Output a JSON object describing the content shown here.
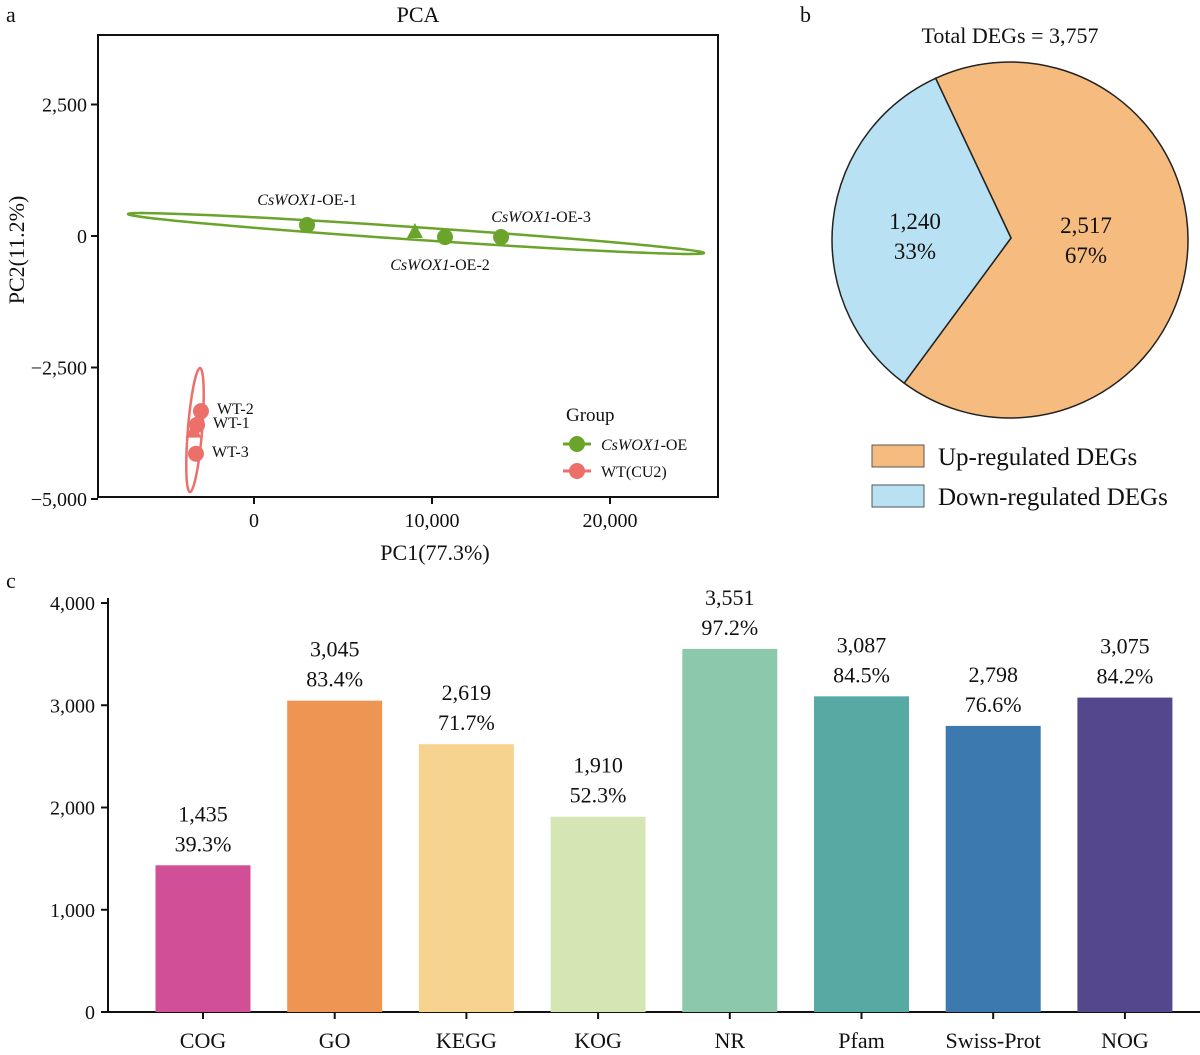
{
  "panels": {
    "a": "a",
    "b": "b",
    "c": "c"
  },
  "chart_data": [
    {
      "type": "scatter",
      "title": "PCA",
      "xlabel": "PC1(77.3%)",
      "ylabel": "PC2(11.2%)",
      "xlim": [
        -9000,
        26500
      ],
      "ylim": [
        -5000,
        3800
      ],
      "xticks": [
        {
          "v": 0,
          "label": "0"
        },
        {
          "v": 10000,
          "label": "10,000"
        },
        {
          "v": 20000,
          "label": "20,000"
        }
      ],
      "yticks": [
        {
          "v": 2500,
          "label": "2,500"
        },
        {
          "v": 0,
          "label": "0"
        },
        {
          "v": -2500,
          "label": "−2,500"
        },
        {
          "v": -5000,
          "label": "−5,000"
        }
      ],
      "legend": {
        "title": "Group",
        "position": "bottom-right"
      },
      "series": [
        {
          "name_italic": "CsWOX1",
          "name_rest": "-OE",
          "color": "#6aa42a",
          "points": [
            {
              "x": 2980,
              "y": 210,
              "label_italic": "CsWOX1",
              "label_rest": "-OE-1",
              "label_pos": "above"
            },
            {
              "x": 10730,
              "y": -20,
              "label_italic": "CsWOX1",
              "label_rest": "-OE-2",
              "label_pos": "below"
            },
            {
              "x": 13880,
              "y": -20,
              "label_italic": "CsWOX1",
              "label_rest": "-OE-3",
              "label_pos": "above-right"
            }
          ],
          "centroid": {
            "x": 9040,
            "y": 75
          },
          "ellipse": {
            "end1": [
              -7080,
              418
            ],
            "end2": [
              25280,
              -323
            ],
            "halfwidth_y": 120
          }
        },
        {
          "name_italic": "",
          "name_rest": "WT(CU2)",
          "color": "#ec6f6a",
          "points": [
            {
              "x": -2980,
              "y": -3330,
              "label_italic": "",
              "label_rest": "WT-2",
              "label_pos": "right"
            },
            {
              "x": -3200,
              "y": -3590,
              "label_italic": "",
              "label_rest": "WT-1",
              "label_pos": "right"
            },
            {
              "x": -3260,
              "y": -4140,
              "label_italic": "",
              "label_rest": "WT-3",
              "label_pos": "right"
            }
          ],
          "centroid": {
            "x": -3400,
            "y": -3720
          },
          "ellipse": {
            "end1": [
              -3030,
              -2510
            ],
            "end2": [
              -3600,
              -4870
            ],
            "halfwidth_x": 400
          }
        }
      ]
    },
    {
      "type": "pie",
      "title": "Total DEGs = 3,757",
      "slices": [
        {
          "name": "Up-regulated DEGs",
          "value": 2517,
          "value_label": "2,517",
          "percent": "67%",
          "color": "#f6bc7f"
        },
        {
          "name": "Down-regulated DEGs",
          "value": 1240,
          "value_label": "1,240",
          "percent": "33%",
          "color": "#b8e1f3"
        }
      ],
      "legend": {
        "position": "bottom"
      }
    },
    {
      "type": "bar",
      "ylim": [
        0,
        4000
      ],
      "yticks": [
        {
          "v": 0,
          "label": "0"
        },
        {
          "v": 1000,
          "label": "1,000"
        },
        {
          "v": 2000,
          "label": "2,000"
        },
        {
          "v": 3000,
          "label": "3,000"
        },
        {
          "v": 4000,
          "label": "4,000"
        }
      ],
      "categories": [
        "COG",
        "GO",
        "KEGG",
        "KOG",
        "NR",
        "Pfam",
        "Swiss-Prot",
        "NOG"
      ],
      "values": [
        1435,
        3045,
        2619,
        1910,
        3551,
        3087,
        2798,
        3075
      ],
      "value_labels": [
        "1,435",
        "3,045",
        "2,619",
        "1,910",
        "3,551",
        "3,087",
        "2,798",
        "3,075"
      ],
      "percent_labels": [
        "39.3%",
        "83.4%",
        "71.7%",
        "52.3%",
        "97.2%",
        "84.5%",
        "76.6%",
        "84.2%"
      ],
      "colors": [
        "#d14f97",
        "#ef9554",
        "#f6d38e",
        "#d3e6b4",
        "#8cc9ab",
        "#56aaa3",
        "#3b79ae",
        "#54478e"
      ]
    }
  ]
}
